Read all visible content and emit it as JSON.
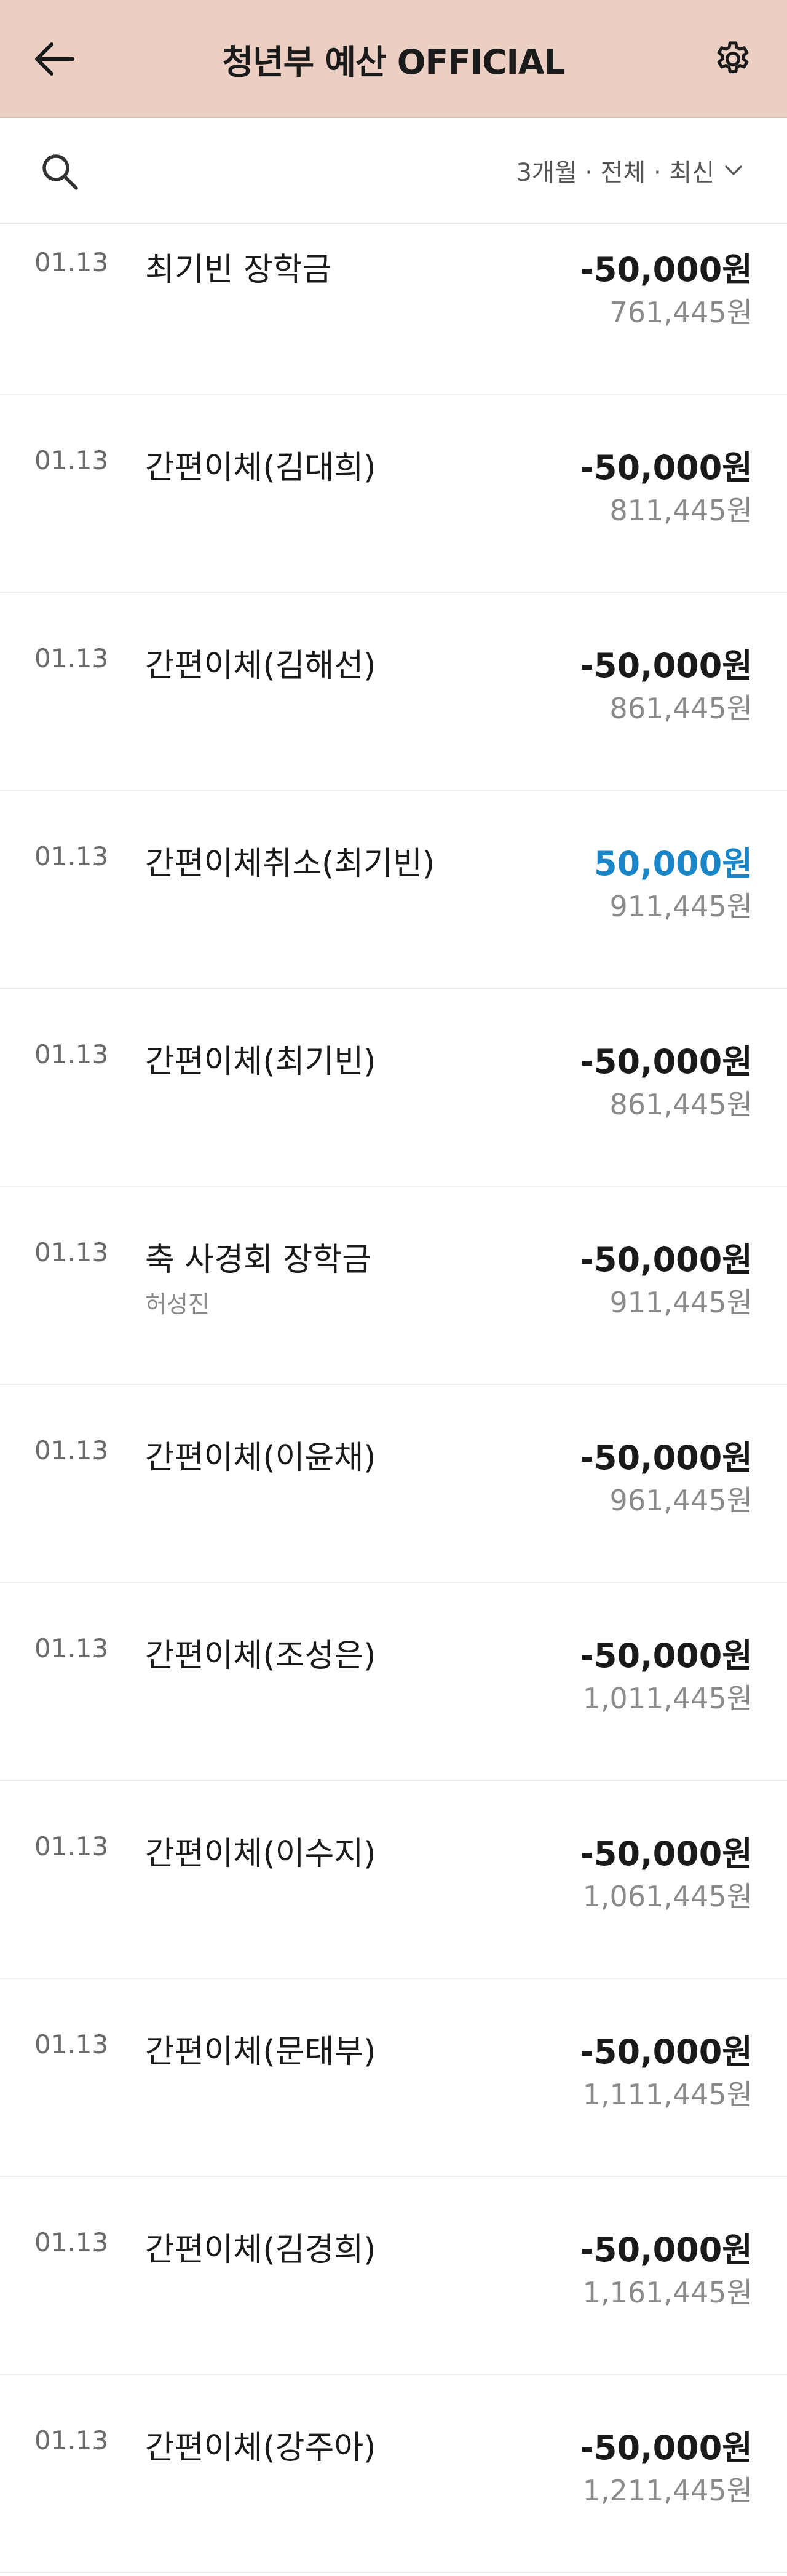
{
  "colors": {
    "header_bg": "#eccfc3",
    "positive": "#1a86c8",
    "text": "#1a1a1a",
    "muted": "#8a8a8a"
  },
  "header": {
    "title": "청년부 예산 OFFICIAL",
    "back_icon": "arrow-left-icon",
    "settings_icon": "gear-icon"
  },
  "filter": {
    "search_icon": "search-icon",
    "label": "3개월 · 전체 · 최신",
    "dropdown_icon": "chevron-down-icon"
  },
  "transactions": [
    {
      "date": "01.13",
      "name": "최기빈 장학금",
      "memo": "",
      "amount": "-50,000원",
      "balance": "761,445원",
      "type": "withdrawal"
    },
    {
      "date": "01.13",
      "name": "간편이체(김대희)",
      "memo": "",
      "amount": "-50,000원",
      "balance": "811,445원",
      "type": "withdrawal"
    },
    {
      "date": "01.13",
      "name": "간편이체(김해선)",
      "memo": "",
      "amount": "-50,000원",
      "balance": "861,445원",
      "type": "withdrawal"
    },
    {
      "date": "01.13",
      "name": "간편이체취소(최기빈)",
      "memo": "",
      "amount": "50,000원",
      "balance": "911,445원",
      "type": "deposit"
    },
    {
      "date": "01.13",
      "name": "간편이체(최기빈)",
      "memo": "",
      "amount": "-50,000원",
      "balance": "861,445원",
      "type": "withdrawal"
    },
    {
      "date": "01.13",
      "name": "축 사경회 장학금",
      "memo": "허성진",
      "amount": "-50,000원",
      "balance": "911,445원",
      "type": "withdrawal"
    },
    {
      "date": "01.13",
      "name": "간편이체(이윤채)",
      "memo": "",
      "amount": "-50,000원",
      "balance": "961,445원",
      "type": "withdrawal"
    },
    {
      "date": "01.13",
      "name": "간편이체(조성은)",
      "memo": "",
      "amount": "-50,000원",
      "balance": "1,011,445원",
      "type": "withdrawal"
    },
    {
      "date": "01.13",
      "name": "간편이체(이수지)",
      "memo": "",
      "amount": "-50,000원",
      "balance": "1,061,445원",
      "type": "withdrawal"
    },
    {
      "date": "01.13",
      "name": "간편이체(문태부)",
      "memo": "",
      "amount": "-50,000원",
      "balance": "1,111,445원",
      "type": "withdrawal"
    },
    {
      "date": "01.13",
      "name": "간편이체(김경희)",
      "memo": "",
      "amount": "-50,000원",
      "balance": "1,161,445원",
      "type": "withdrawal"
    },
    {
      "date": "01.13",
      "name": "간편이체(강주아)",
      "memo": "",
      "amount": "-50,000원",
      "balance": "1,211,445원",
      "type": "withdrawal"
    }
  ]
}
